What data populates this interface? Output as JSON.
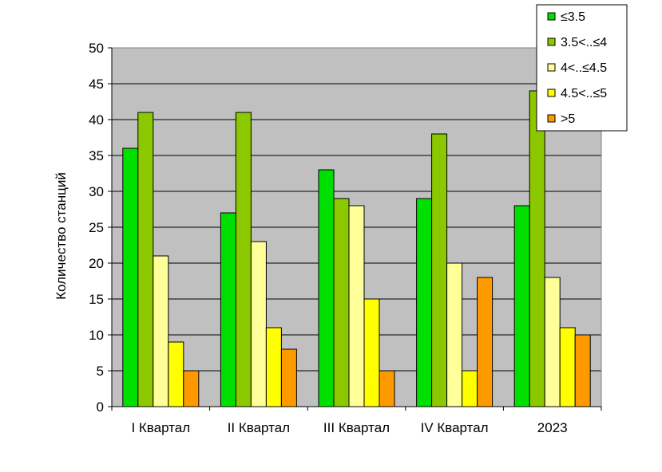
{
  "chart_data": {
    "type": "bar",
    "title": "",
    "xlabel": "",
    "ylabel": "Количество станций",
    "ylim": [
      0,
      50
    ],
    "ytick_step": 5,
    "grid": true,
    "legend_position": "top-right",
    "categories": [
      "I Квартал",
      "II Квартал",
      "III Квартал",
      "IV Квартал",
      "2023"
    ],
    "series": [
      {
        "name": "≤3.5",
        "color": "#00E000",
        "values": [
          36,
          27,
          33,
          29,
          28
        ]
      },
      {
        "name": "3.5<..≤4",
        "color": "#8CC800",
        "values": [
          41,
          41,
          29,
          38,
          44
        ]
      },
      {
        "name": "4<..≤4.5",
        "color": "#FFFF99",
        "values": [
          21,
          23,
          28,
          20,
          18
        ]
      },
      {
        "name": "4.5<..≤5",
        "color": "#FFFF00",
        "values": [
          9,
          11,
          15,
          5,
          11
        ]
      },
      {
        "name": ">5",
        "color": "#FF9900",
        "values": [
          5,
          8,
          5,
          18,
          10
        ]
      }
    ],
    "plot_background": "#C0C0C0"
  }
}
